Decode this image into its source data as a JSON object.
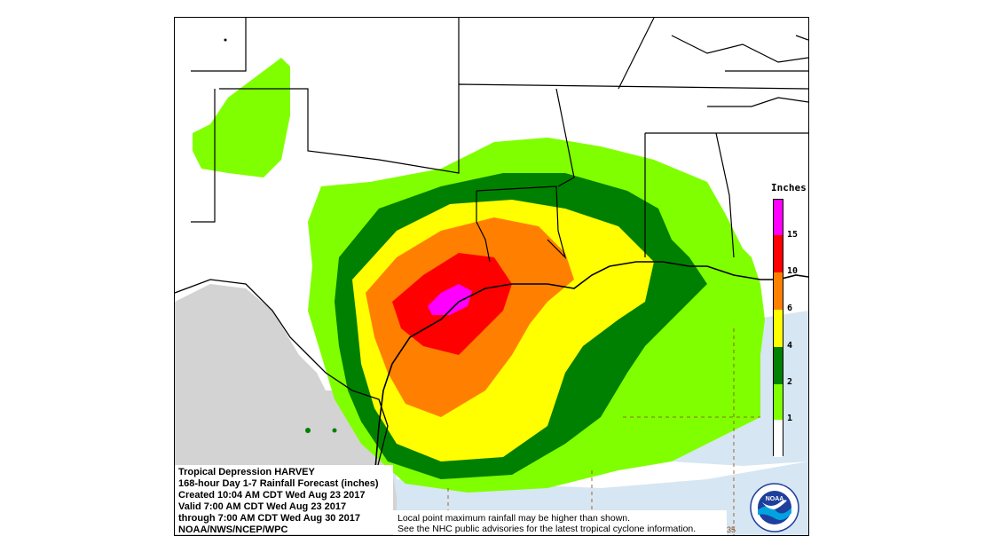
{
  "info": {
    "line1": "Tropical Depression HARVEY",
    "line2": "168-hour Day 1-7 Rainfall Forecast (inches)",
    "line3": "Created 10:04 AM CDT Wed Aug 23 2017",
    "line4": "Valid 7:00 AM CDT Wed Aug 23 2017",
    "line5": "through 7:00 AM CDT Wed Aug 30 2017",
    "line6": "NOAA/NWS/NCEP/WPC"
  },
  "note": {
    "line1": "Local point maximum rainfall may be higher than shown.",
    "line2": "See the NHC public advisories for the latest tropical cyclone information."
  },
  "legend": {
    "title": "Inches",
    "labels": [
      "15",
      "10",
      "6",
      "4",
      "2",
      "1"
    ],
    "colors": [
      "#ff00ff",
      "#ff0000",
      "#ff8000",
      "#ffff00",
      "#008000",
      "#80ff00",
      "#ffffff"
    ]
  },
  "logo": {
    "text": "NOAA",
    "ring_text": "NATIONAL OCEANIC AND ATMOSPHERIC ADMINISTRATION",
    "colors": {
      "sky": "#1f3f9e",
      "bird": "#ffffff",
      "wave": "#00a3e0"
    }
  },
  "grid_label": "35",
  "colors": {
    "land_outside": "#d3d3d3",
    "ocean": "#d6e6f2",
    "contour_1": "#80ff00",
    "contour_2": "#008000",
    "contour_4": "#ffff00",
    "contour_6": "#ff8000",
    "contour_10": "#ff0000",
    "contour_15": "#ff00ff"
  }
}
